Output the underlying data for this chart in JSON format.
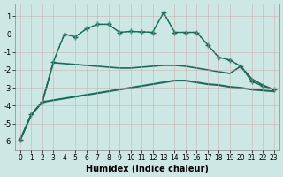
{
  "xlabel": "Humidex (Indice chaleur)",
  "background_color": "#cde8e4",
  "line_color": "#1a6b5a",
  "xlim": [
    -0.5,
    23.5
  ],
  "ylim": [
    -6.5,
    1.7
  ],
  "yticks": [
    1,
    0,
    -1,
    -2,
    -3,
    -4,
    -5,
    -6
  ],
  "xticks": [
    0,
    1,
    2,
    3,
    4,
    5,
    6,
    7,
    8,
    9,
    10,
    11,
    12,
    13,
    14,
    15,
    16,
    17,
    18,
    19,
    20,
    21,
    22,
    23
  ],
  "line1": {
    "x": [
      0,
      1,
      2,
      3,
      4,
      5,
      6,
      7,
      8,
      9,
      10,
      11,
      12,
      13,
      14,
      15,
      16,
      17,
      18,
      19,
      20,
      21,
      22,
      23
    ],
    "y": [
      -5.9,
      -4.5,
      -3.8,
      -1.55,
      0.0,
      -0.15,
      0.3,
      0.55,
      0.55,
      0.1,
      0.15,
      0.13,
      0.1,
      1.2,
      0.1,
      0.1,
      0.1,
      -0.6,
      -1.3,
      -1.45,
      -1.8,
      -2.65,
      -2.9,
      -3.1
    ],
    "linestyle": "-",
    "marker": "+",
    "markersize": 4,
    "linewidth": 1.0
  },
  "line2": {
    "x": [
      0,
      1,
      2,
      3,
      4,
      5,
      6,
      7,
      8,
      9,
      10,
      11,
      12,
      13,
      14,
      15,
      16,
      17,
      18,
      19,
      20,
      21,
      22,
      23
    ],
    "y": [
      -5.9,
      -4.5,
      -3.8,
      -1.55,
      0.0,
      -0.15,
      0.3,
      0.55,
      0.55,
      0.1,
      0.15,
      0.13,
      0.1,
      1.2,
      0.1,
      0.1,
      0.1,
      -0.6,
      -1.3,
      -1.45,
      -1.8,
      -2.65,
      -2.9,
      -3.1
    ],
    "linestyle": ":",
    "marker": "+",
    "markersize": 3,
    "linewidth": 1.0
  },
  "line3": {
    "x": [
      0,
      1,
      2,
      3,
      4,
      5,
      6,
      7,
      8,
      9,
      10,
      11,
      12,
      13,
      14,
      15,
      16,
      17,
      18,
      19,
      20,
      21,
      22,
      23
    ],
    "y": [
      -5.9,
      -4.5,
      -3.8,
      -1.6,
      -1.65,
      -1.7,
      -1.75,
      -1.8,
      -1.85,
      -1.9,
      -1.9,
      -1.85,
      -1.8,
      -1.75,
      -1.75,
      -1.8,
      -1.9,
      -2.0,
      -2.1,
      -2.2,
      -1.8,
      -2.5,
      -2.85,
      -3.1
    ],
    "linestyle": "-",
    "marker": null,
    "linewidth": 1.2
  },
  "line4": {
    "x": [
      0,
      1,
      2,
      3,
      4,
      5,
      6,
      7,
      8,
      9,
      10,
      11,
      12,
      13,
      14,
      15,
      16,
      17,
      18,
      19,
      20,
      21,
      22,
      23
    ],
    "y": [
      -5.9,
      -4.5,
      -3.8,
      -3.7,
      -3.6,
      -3.5,
      -3.4,
      -3.3,
      -3.2,
      -3.1,
      -3.0,
      -2.9,
      -2.8,
      -2.7,
      -2.6,
      -2.6,
      -2.7,
      -2.8,
      -2.85,
      -2.95,
      -3.0,
      -3.1,
      -3.15,
      -3.2
    ],
    "linestyle": "-",
    "marker": null,
    "linewidth": 1.5
  }
}
